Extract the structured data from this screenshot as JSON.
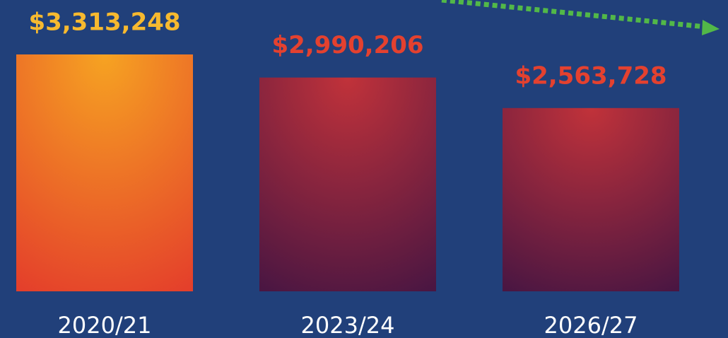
{
  "chart_data": {
    "type": "bar",
    "categories": [
      "2020/21",
      "2023/24",
      "2026/27"
    ],
    "values": [
      3313248,
      2990206,
      2563728
    ],
    "value_labels": [
      "$3,313,248",
      "$2,990,206",
      "$2,563,728"
    ],
    "colors": [
      [
        "#f6a322",
        "#e43f2b"
      ],
      [
        "#c1323a",
        "#4a1642"
      ],
      [
        "#c1323a",
        "#4a1642"
      ]
    ],
    "label_colors": [
      "#f7b92f",
      "#e4412f",
      "#e4412f"
    ]
  }
}
